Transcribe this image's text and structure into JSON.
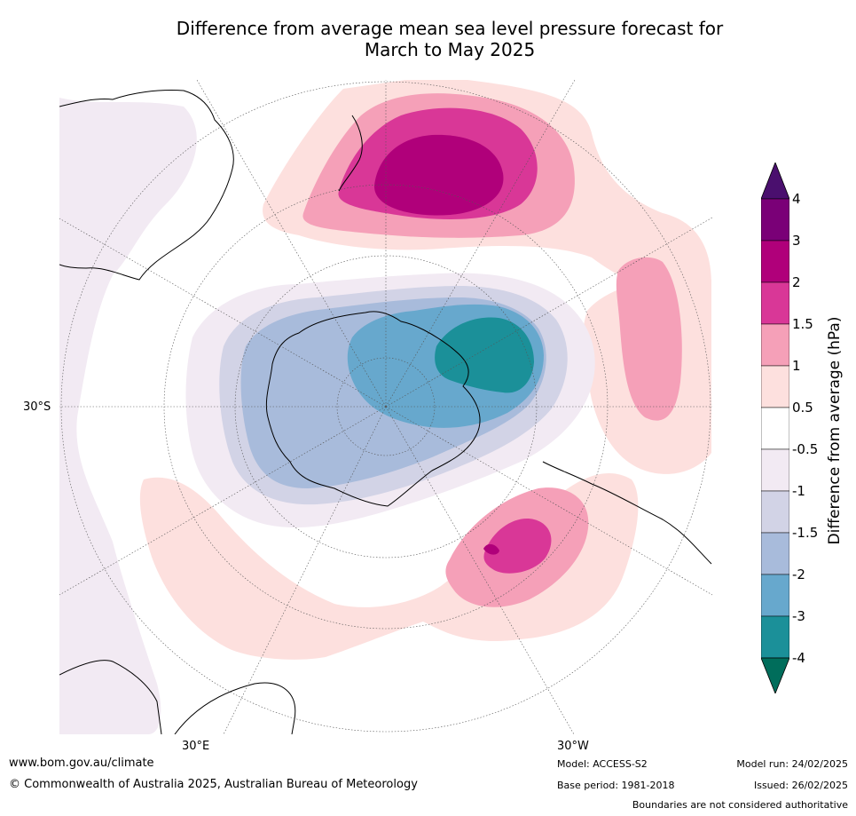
{
  "title_line1": "Difference from average mean sea level pressure forecast for",
  "title_line2": "March to May 2025",
  "map": {
    "projection": "south-polar-stereographic",
    "lat_label": "30°S",
    "lon_labels": {
      "east": "30°E",
      "west": "30°W"
    },
    "features": [
      {
        "name": "high-anomaly-new-zealand",
        "max_hpa": 3
      },
      {
        "name": "low-anomaly-antarctica",
        "min_hpa": -4
      },
      {
        "name": "high-anomaly-south-atlantic",
        "max_hpa": 2
      },
      {
        "name": "high-anomaly-east-pacific",
        "max_hpa": 1.5
      }
    ]
  },
  "colorbar": {
    "label": "Difference from average (hPa)",
    "ticks": [
      "4",
      "3",
      "2",
      "1.5",
      "1",
      "0.5",
      "-0.5",
      "-1",
      "-1.5",
      "-2",
      "-3",
      "-4"
    ],
    "colors": {
      "gt4": "#4a0f6e",
      "3_4": "#7a0077",
      "2_3": "#b0007a",
      "1.5_2": "#d93797",
      "1_1.5": "#f5a0b8",
      "0.5_1": "#fde0de",
      "neutral": "#ffffff",
      "m0.5_m1": "#f2eaf3",
      "m1_m1.5": "#d2d3e6",
      "m1.5_m2": "#a8bbdb",
      "m2_m3": "#67a8cd",
      "m3_m4": "#1b9099",
      "lt_m4": "#006d5b"
    }
  },
  "footer": {
    "url": "www.bom.gov.au/climate",
    "copyright": "© Commonwealth of Australia 2025, Australian Bureau of Meteorology",
    "model": "Model: ACCESS-S2",
    "base_period": "Base period: 1981-2018",
    "model_run": "Model run: 24/02/2025",
    "issued": "Issued: 26/02/2025",
    "disclaimer": "Boundaries are not considered authoritative"
  }
}
